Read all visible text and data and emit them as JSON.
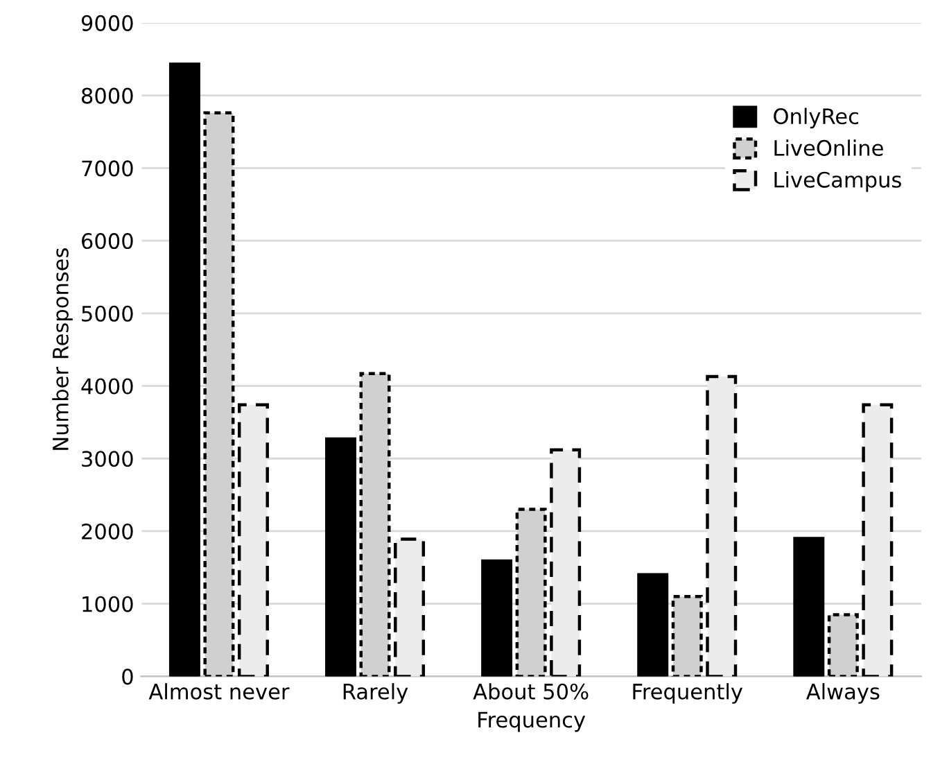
{
  "chart_data": {
    "type": "bar",
    "xlabel": "Frequency",
    "ylabel": "Number Responses",
    "categories": [
      "Almost never",
      "Rarely",
      "About 50%",
      "Frequently",
      "Always"
    ],
    "series": [
      {
        "name": "OnlyRec",
        "color": "#000000",
        "line_style": "solid",
        "values": [
          8430,
          3270,
          1590,
          1400,
          1900
        ]
      },
      {
        "name": "LiveOnline",
        "color": "#d0d0d0",
        "line_style": "dotted",
        "values": [
          7760,
          4170,
          2300,
          1100,
          850
        ]
      },
      {
        "name": "LiveCampus",
        "color": "#ececec",
        "line_style": "dashed",
        "values": [
          3740,
          1890,
          3120,
          4130,
          3740
        ]
      }
    ],
    "ylim": [
      0,
      9000
    ],
    "yticks": [
      0,
      1000,
      2000,
      3000,
      4000,
      5000,
      6000,
      7000,
      8000,
      9000
    ],
    "grid": "y",
    "legend": "top right"
  }
}
